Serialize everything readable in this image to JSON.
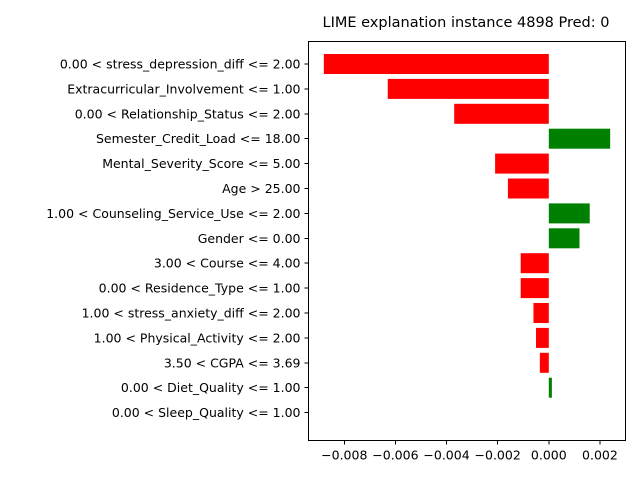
{
  "chart_data": {
    "type": "bar",
    "orientation": "horizontal",
    "title": "LIME explanation instance 4898 Pred: 0",
    "xlabel": "",
    "ylabel": "",
    "xlim": [
      -0.0094,
      0.003
    ],
    "xticks": [
      -0.008,
      -0.006,
      -0.004,
      -0.002,
      0.0,
      0.002
    ],
    "xtick_labels": [
      "−0.008",
      "−0.006",
      "−0.004",
      "−0.002",
      "0.000",
      "0.002"
    ],
    "grid": false,
    "colors": {
      "positive": "#008000",
      "negative": "#ff0000"
    },
    "categories": [
      "0.00 < stress_depression_diff <= 2.00",
      "Extracurricular_Involvement <= 1.00",
      "0.00 < Relationship_Status <= 2.00",
      "Semester_Credit_Load <= 18.00",
      "Mental_Severity_Score <= 5.00",
      "Age > 25.00",
      "1.00 < Counseling_Service_Use <= 2.00",
      "Gender <= 0.00",
      "3.00 < Course <= 4.00",
      "0.00 < Residence_Type <= 1.00",
      "1.00 < stress_anxiety_diff <= 2.00",
      "1.00 < Physical_Activity <= 2.00",
      "3.50 < CGPA <= 3.69",
      "0.00 < Diet_Quality <= 1.00",
      "0.00 < Sleep_Quality <= 1.00"
    ],
    "values": [
      -0.0088,
      -0.0063,
      -0.0037,
      0.0024,
      -0.0021,
      -0.0016,
      0.0016,
      0.0012,
      -0.0011,
      -0.0011,
      -0.0006,
      -0.0005,
      -0.00035,
      0.00012,
      0.0
    ]
  }
}
